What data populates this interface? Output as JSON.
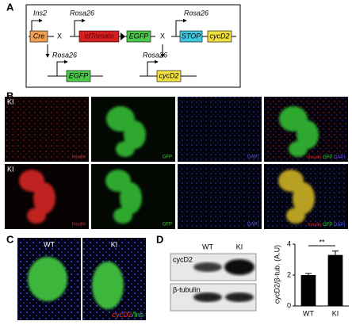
{
  "panel_labels": [
    "A",
    "B",
    "C",
    "D"
  ],
  "panel_a": {
    "row1": {
      "promoter1": "Ins2",
      "gene1": "Cre",
      "cross1": "X",
      "promoter2": "Rosa26",
      "gene2": "tdTomato",
      "gene3": "EGFP",
      "cross2": "X",
      "promoter3": "Rosa26",
      "gene4": "STOP",
      "gene5": "cycD2"
    },
    "row2": {
      "promoter1": "Rosa26",
      "gene1": "EGFP",
      "promoter2": "Rosa26",
      "gene2": "cycD2"
    }
  },
  "panel_b": {
    "rows": [
      {
        "tag": "KI",
        "channels": [
          "Insulin",
          "GFP",
          "DAPI"
        ]
      },
      {
        "tag": "KI",
        "channels": [
          "Insulin",
          "GFP",
          "DAPI"
        ]
      }
    ]
  },
  "panel_c": {
    "columns": [
      "WT",
      "KI"
    ],
    "stain": [
      "cycD2",
      "/Ins"
    ]
  },
  "panel_d": {
    "blot_columns": [
      "WT",
      "KI"
    ],
    "blot_rows": [
      "cycD2",
      "β-tubulin"
    ]
  },
  "chart_data": {
    "type": "bar",
    "ylabel": "cycD2/β-tub. (A.U)",
    "categories": [
      "WT",
      "KI"
    ],
    "values": [
      2.0,
      3.3
    ],
    "errors": [
      0.1,
      0.25
    ],
    "color": "#000000",
    "ylim": [
      0,
      4
    ],
    "yticks": [
      0,
      2,
      4
    ],
    "annotation": "**"
  }
}
